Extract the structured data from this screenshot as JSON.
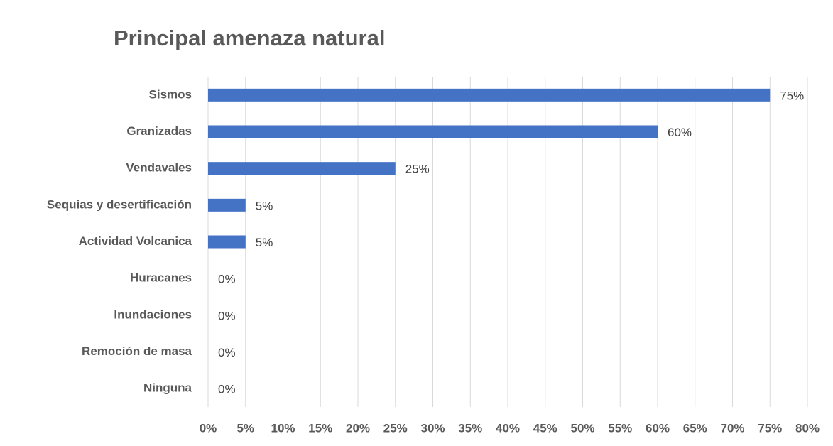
{
  "chart_data": {
    "type": "bar",
    "orientation": "horizontal",
    "title": "Principal amenaza natural",
    "categories": [
      "Sismos",
      "Granizadas",
      "Vendavales",
      "Sequias y desertificación",
      "Actividad Volcanica",
      "Huracanes",
      "Inundaciones",
      "Remoción de masa",
      "Ninguna"
    ],
    "values": [
      75,
      60,
      25,
      5,
      5,
      0,
      0,
      0,
      0
    ],
    "value_labels": [
      "75%",
      "60%",
      "25%",
      "5%",
      "5%",
      "0%",
      "0%",
      "0%",
      "0%"
    ],
    "color": "#4472c4",
    "xlim": [
      0,
      80
    ],
    "xticks": [
      {
        "value": 0,
        "label": "0%"
      },
      {
        "value": 5,
        "label": "5%"
      },
      {
        "value": 10,
        "label": "10%"
      },
      {
        "value": 15,
        "label": "15%"
      },
      {
        "value": 20,
        "label": "20%"
      },
      {
        "value": 25,
        "label": "25%"
      },
      {
        "value": 30,
        "label": "30%"
      },
      {
        "value": 35,
        "label": "35%"
      },
      {
        "value": 40,
        "label": "40%"
      },
      {
        "value": 45,
        "label": "45%"
      },
      {
        "value": 50,
        "label": "50%"
      },
      {
        "value": 55,
        "label": "55%"
      },
      {
        "value": 60,
        "label": "60%"
      },
      {
        "value": 65,
        "label": "65%"
      },
      {
        "value": 70,
        "label": "70%"
      },
      {
        "value": 75,
        "label": "75%"
      },
      {
        "value": 80,
        "label": "80%"
      }
    ],
    "grid": true
  }
}
